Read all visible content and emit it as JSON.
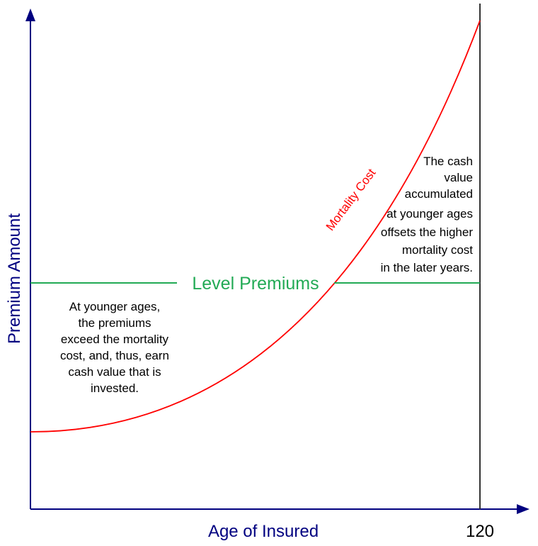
{
  "chart_data": {
    "type": "line",
    "title": "",
    "xlabel": "Age of Insured",
    "ylabel": "Premium Amount",
    "x_tick_label": "120",
    "series": [
      {
        "name": "Mortality Cost",
        "color": "#ff0000",
        "shape": "rising convex curve"
      },
      {
        "name": "Level Premiums",
        "color": "#22aa55",
        "shape": "horizontal level line"
      }
    ],
    "annotations": {
      "left_note": [
        "At younger ages,",
        "the premiums",
        "exceed the mortality",
        "cost, and, thus, earn",
        "cash value that is",
        "invested."
      ],
      "right_note": [
        "The cash",
        "value",
        "accumulated",
        "at younger ages",
        "offsets the higher",
        "mortality cost",
        "in the later years."
      ]
    }
  },
  "colors": {
    "axis": "#00007f",
    "axis_label": "#000080",
    "mortality": "#ff0000",
    "level": "#22aa55",
    "vertical_line": "#333333",
    "note_text": "#000000"
  }
}
